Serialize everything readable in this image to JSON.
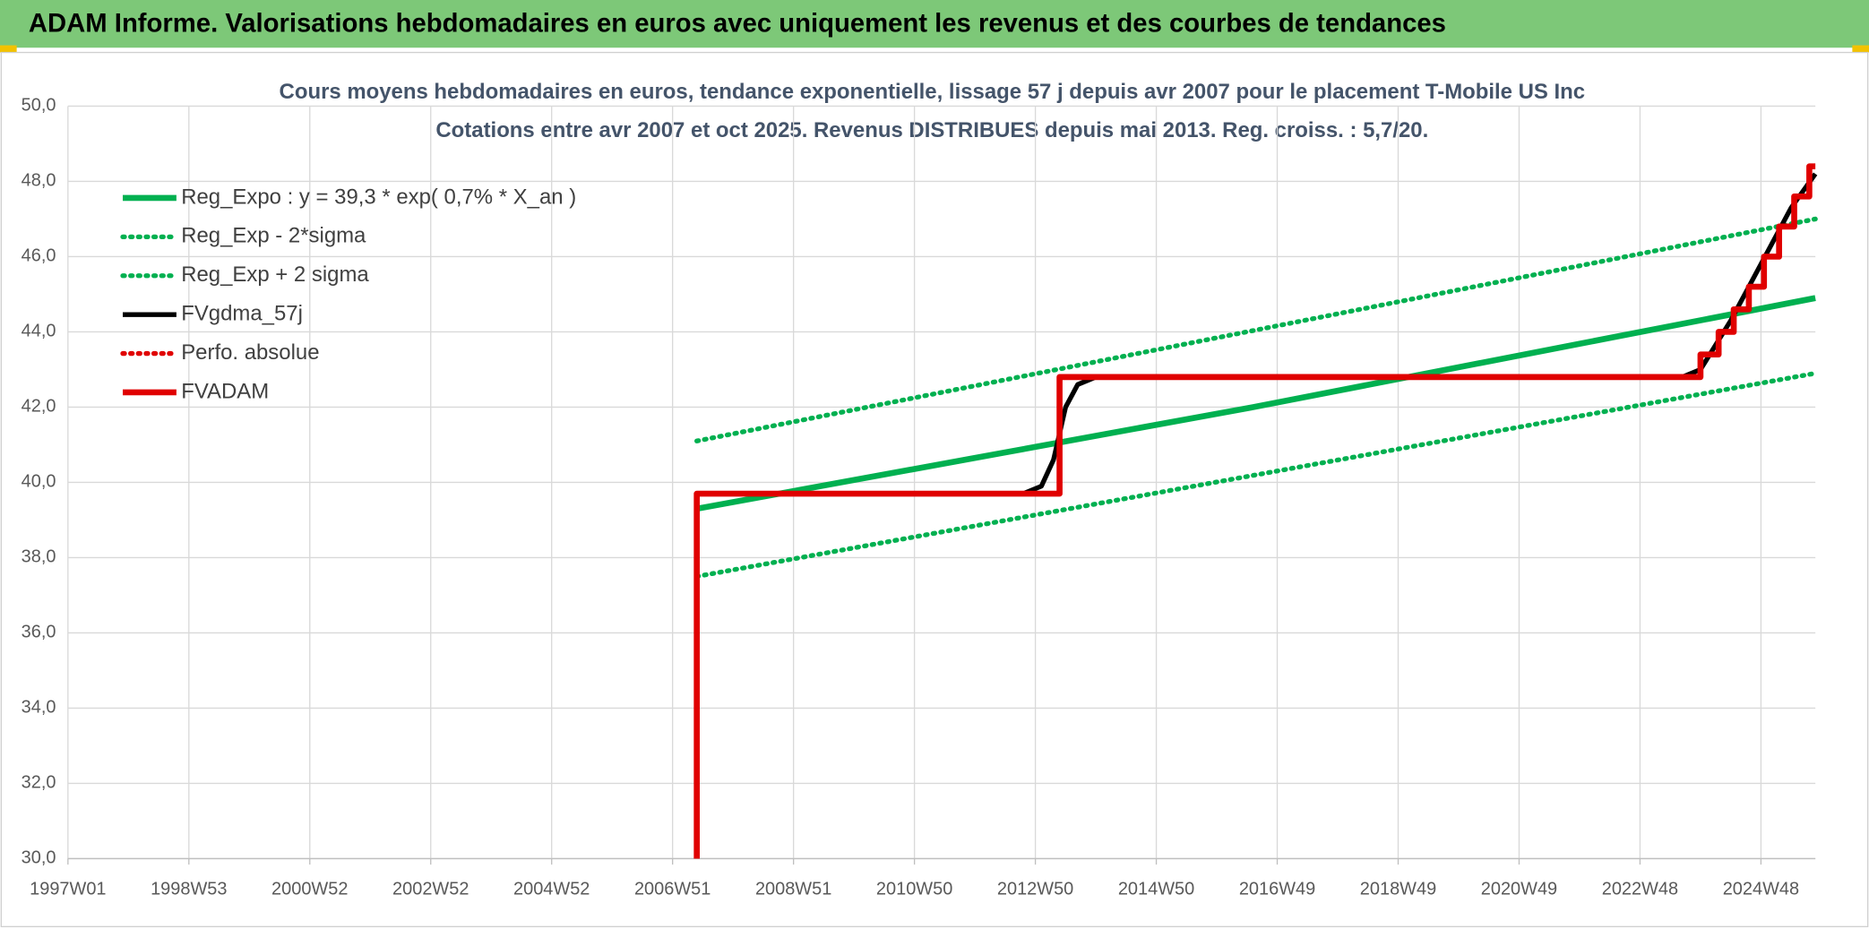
{
  "header": {
    "title": "ADAM Informe. Valorisations hebdomadaires en euros avec uniquement les revenus et des courbes de tendances"
  },
  "chart_data": {
    "type": "line",
    "title": "Cours moyens hebdomadaires en euros, tendance exponentielle, lissage 57 j depuis avr 2007 pour le placement T-Mobile US Inc",
    "subtitle": "Cotations entre avr 2007 et oct 2025. Revenus DISTRIBUES depuis mai 2013. Reg. croiss. : 5,7/20.",
    "xlim": [
      1997,
      2025.9
    ],
    "xticks": [
      {
        "value": 1997,
        "label": "1997W01"
      },
      {
        "value": 1999,
        "label": "1998W53"
      },
      {
        "value": 2001,
        "label": "2000W52"
      },
      {
        "value": 2003,
        "label": "2002W52"
      },
      {
        "value": 2005,
        "label": "2004W52"
      },
      {
        "value": 2007,
        "label": "2006W51"
      },
      {
        "value": 2009,
        "label": "2008W51"
      },
      {
        "value": 2011,
        "label": "2010W50"
      },
      {
        "value": 2013,
        "label": "2012W50"
      },
      {
        "value": 2015,
        "label": "2014W50"
      },
      {
        "value": 2017,
        "label": "2016W49"
      },
      {
        "value": 2019,
        "label": "2018W49"
      },
      {
        "value": 2021,
        "label": "2020W49"
      },
      {
        "value": 2023,
        "label": "2022W48"
      },
      {
        "value": 2025,
        "label": "2024W48"
      }
    ],
    "ylim": [
      30,
      50
    ],
    "yticks": [
      {
        "value": 30,
        "label": "30,0"
      },
      {
        "value": 32,
        "label": "32,0"
      },
      {
        "value": 34,
        "label": "34,0"
      },
      {
        "value": 36,
        "label": "36,0"
      },
      {
        "value": 38,
        "label": "38,0"
      },
      {
        "value": 40,
        "label": "40,0"
      },
      {
        "value": 42,
        "label": "42,0"
      },
      {
        "value": 44,
        "label": "44,0"
      },
      {
        "value": 46,
        "label": "46,0"
      },
      {
        "value": 48,
        "label": "48,0"
      },
      {
        "value": 50,
        "label": "50,0"
      }
    ],
    "grid": true,
    "legend": "top-left",
    "series": [
      {
        "name": "Reg_Expo : y = 39,3 * exp( 0,7% *  X_an )",
        "color": "#00b050",
        "style": "solid",
        "x": [
          2007.4,
          2016.6,
          2025.9
        ],
        "values": [
          39.3,
          42.0,
          44.9
        ]
      },
      {
        "name": "Reg_Exp - 2*sigma",
        "color": "#00b050",
        "style": "dotted",
        "x": [
          2007.4,
          2025.9
        ],
        "values": [
          37.5,
          42.9
        ]
      },
      {
        "name": "Reg_Exp + 2 sigma",
        "color": "#00b050",
        "style": "dotted",
        "x": [
          2007.4,
          2025.9
        ],
        "values": [
          41.1,
          47.0
        ]
      },
      {
        "name": "FVgdma_57j",
        "color": "#000000",
        "style": "solid",
        "x": [
          2007.4,
          2012.8,
          2013.1,
          2013.3,
          2013.5,
          2013.7,
          2014.0,
          2023.7,
          2024.0,
          2024.5,
          2025.0,
          2025.5,
          2025.9
        ],
        "values": [
          39.7,
          39.7,
          39.9,
          40.6,
          42.0,
          42.6,
          42.8,
          42.8,
          43.0,
          44.3,
          45.8,
          47.3,
          48.2
        ]
      },
      {
        "name": "Perfo. absolue",
        "color": "#e00000",
        "style": "dotted",
        "x": [],
        "values": []
      },
      {
        "name": "FVADAM",
        "color": "#e00000",
        "style": "solid",
        "x": [
          2007.4,
          2007.4,
          2013.4,
          2013.4,
          2024.0,
          2024.0,
          2024.3,
          2024.3,
          2024.55,
          2024.55,
          2024.8,
          2024.8,
          2025.05,
          2025.05,
          2025.3,
          2025.3,
          2025.55,
          2025.55,
          2025.8,
          2025.8,
          2025.9
        ],
        "values": [
          30,
          39.7,
          39.7,
          42.8,
          42.8,
          43.4,
          43.4,
          44.0,
          44.0,
          44.6,
          44.6,
          45.2,
          45.2,
          46.0,
          46.0,
          46.8,
          46.8,
          47.6,
          47.6,
          48.4,
          48.4
        ]
      }
    ]
  }
}
